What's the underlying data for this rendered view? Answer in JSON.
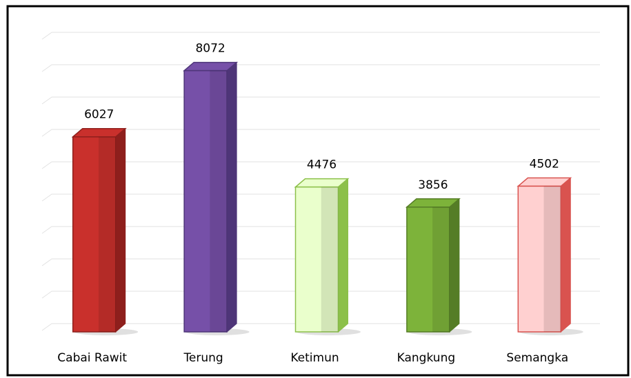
{
  "chart_data": {
    "type": "bar3d",
    "categories": [
      "Cabai Rawit",
      "Terung",
      "Ketimun",
      "Kangkung",
      "Semangka"
    ],
    "values": [
      6027,
      8072,
      4476,
      3856,
      4502
    ],
    "colors": [
      "#c9302c",
      "#7650a8",
      "#eaffcc",
      "#7db33a",
      "#ffd0d0"
    ],
    "edge_colors": [
      "#8e1f1c",
      "#4e3578",
      "#8cc04a",
      "#557d26",
      "#d9534f"
    ],
    "ylim": [
      0,
      9000
    ],
    "yticks": [
      0,
      1000,
      2000,
      3000,
      4000,
      5000,
      6000,
      7000,
      8000,
      9000
    ],
    "grid": true
  }
}
